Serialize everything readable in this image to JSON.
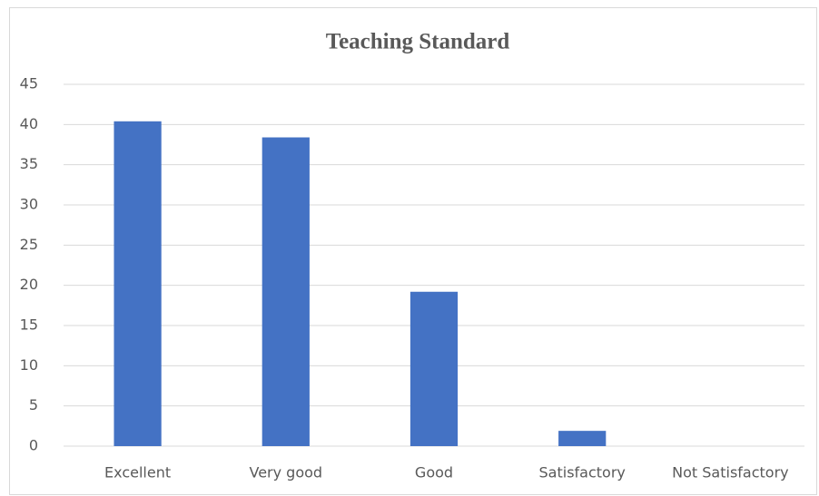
{
  "chart_data": {
    "type": "bar",
    "title": "Teaching Standard",
    "categories": [
      "Excellent",
      "Very good",
      "Good",
      "Satisfactory",
      "Not Satisfactory"
    ],
    "values": [
      40.4,
      38.4,
      19.2,
      1.9,
      0
    ],
    "color": "#4472c4",
    "ylim": [
      0,
      45
    ],
    "yticks": [
      0,
      5,
      10,
      15,
      20,
      25,
      30,
      35,
      40,
      45
    ],
    "grid": true
  }
}
